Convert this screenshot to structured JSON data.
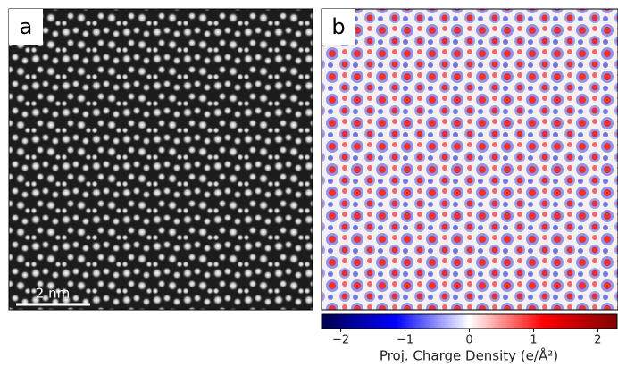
{
  "panels": [
    {
      "label": "a",
      "scale_bar": "2 nm"
    },
    {
      "label": "b"
    }
  ],
  "colorbar": {
    "label": "Proj. Charge Density (e/Å²)",
    "lim": [
      -2.3,
      2.3
    ],
    "ticks": [
      {
        "value": -2,
        "label": "−2"
      },
      {
        "value": -1,
        "label": "−1"
      },
      0,
      1,
      2
    ]
  }
}
